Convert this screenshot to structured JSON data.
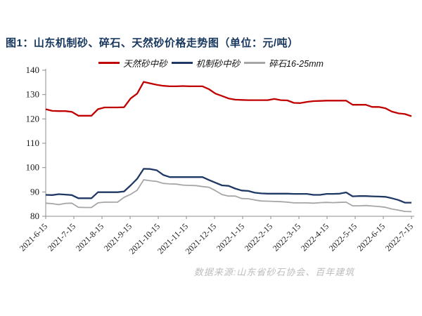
{
  "title": "图1：山东机制砂、碎石、天然砂价格走势图（单位：元/吨）",
  "source_note": "数据来源:山东省砂石协会、百年建筑",
  "colors": {
    "title": "#17375E",
    "axis": "#8C8C8C",
    "tick_label": "#1a1a1a",
    "source_note": "#BDBDBD"
  },
  "chart_data": {
    "type": "line",
    "title": "图1：山东机制砂、碎石、天然砂价格走势图（单位：元/吨）",
    "ylabel": "",
    "xlabel": "",
    "ylim": [
      80,
      140
    ],
    "ytick_labels": [
      "80",
      "90",
      "100",
      "110",
      "120",
      "130",
      "140"
    ],
    "x_tick_labels": [
      "2021-6-15",
      "2021-7-15",
      "2021-8-15",
      "2021-9-15",
      "2021-10-15",
      "2021-11-15",
      "2021-12-15",
      "2022-1-15",
      "2022-2-15",
      "2022-3-15",
      "2022-4-15",
      "2022-5-15",
      "2022-6-15",
      "2022-7-15"
    ],
    "x_unit": "weekly samples from 2021-6-15 to 2022-7-15",
    "grid": false,
    "legend_position": "top",
    "series": [
      {
        "name": "天然砂中砂",
        "color": "#C00000",
        "stroke_width": 2.3,
        "values": [
          124,
          123.3,
          123.2,
          123.2,
          122.9,
          121.3,
          121.3,
          121.3,
          124,
          124.7,
          124.7,
          124.7,
          124.8,
          128.4,
          130.4,
          135.2,
          134.6,
          134,
          133.6,
          133.4,
          133.4,
          133.5,
          133.4,
          133.4,
          133.4,
          132.2,
          130.4,
          129.4,
          128.4,
          127.9,
          127.8,
          127.7,
          127.7,
          127.7,
          127.7,
          128.2,
          127.7,
          127.6,
          126.6,
          126.5,
          127,
          127.3,
          127.4,
          127.5,
          127.5,
          127.5,
          127.5,
          125.8,
          125.8,
          125.8,
          124.9,
          124.9,
          124.4,
          123,
          122.3,
          122,
          121.1
        ]
      },
      {
        "name": "机制砂中砂",
        "color": "#1F3864",
        "stroke_width": 2.3,
        "values": [
          88.8,
          88.7,
          89.1,
          88.9,
          88.7,
          87.4,
          87.4,
          87.4,
          89.9,
          89.9,
          89.9,
          89.9,
          90.2,
          92.7,
          95.4,
          99.5,
          99.4,
          98.9,
          97,
          96.1,
          96.1,
          96.1,
          96.1,
          96.1,
          96.1,
          94.9,
          93.8,
          92.7,
          92.5,
          91.4,
          90.6,
          90.4,
          89.7,
          89.4,
          89.3,
          89.3,
          89.3,
          89.3,
          89.2,
          89.2,
          89.2,
          88.8,
          88.8,
          89.2,
          89.2,
          89.3,
          89.8,
          88.2,
          88.3,
          88.3,
          88.2,
          88.1,
          88,
          87.4,
          86.7,
          85.6,
          85.6
        ]
      },
      {
        "name": "碎石16-25mm",
        "color": "#A6A6A6",
        "stroke_width": 1.8,
        "values": [
          85.4,
          85.2,
          84.8,
          85.3,
          85.4,
          83.7,
          83.6,
          83.6,
          85.5,
          85.8,
          85.8,
          85.8,
          87.8,
          89,
          90.7,
          95,
          94.6,
          94.3,
          93.5,
          93.3,
          93.2,
          92.8,
          92.7,
          92.6,
          92.2,
          91.9,
          90.5,
          88.9,
          88.3,
          88.3,
          87.3,
          87.2,
          86.7,
          86.3,
          86.2,
          86.1,
          86,
          85.8,
          85.5,
          85.5,
          85.5,
          85.4,
          85.6,
          85.7,
          85.6,
          85.7,
          85.8,
          84.3,
          84.3,
          84.4,
          84.2,
          84,
          83.7,
          83,
          82.5,
          82,
          81.9
        ]
      }
    ]
  }
}
